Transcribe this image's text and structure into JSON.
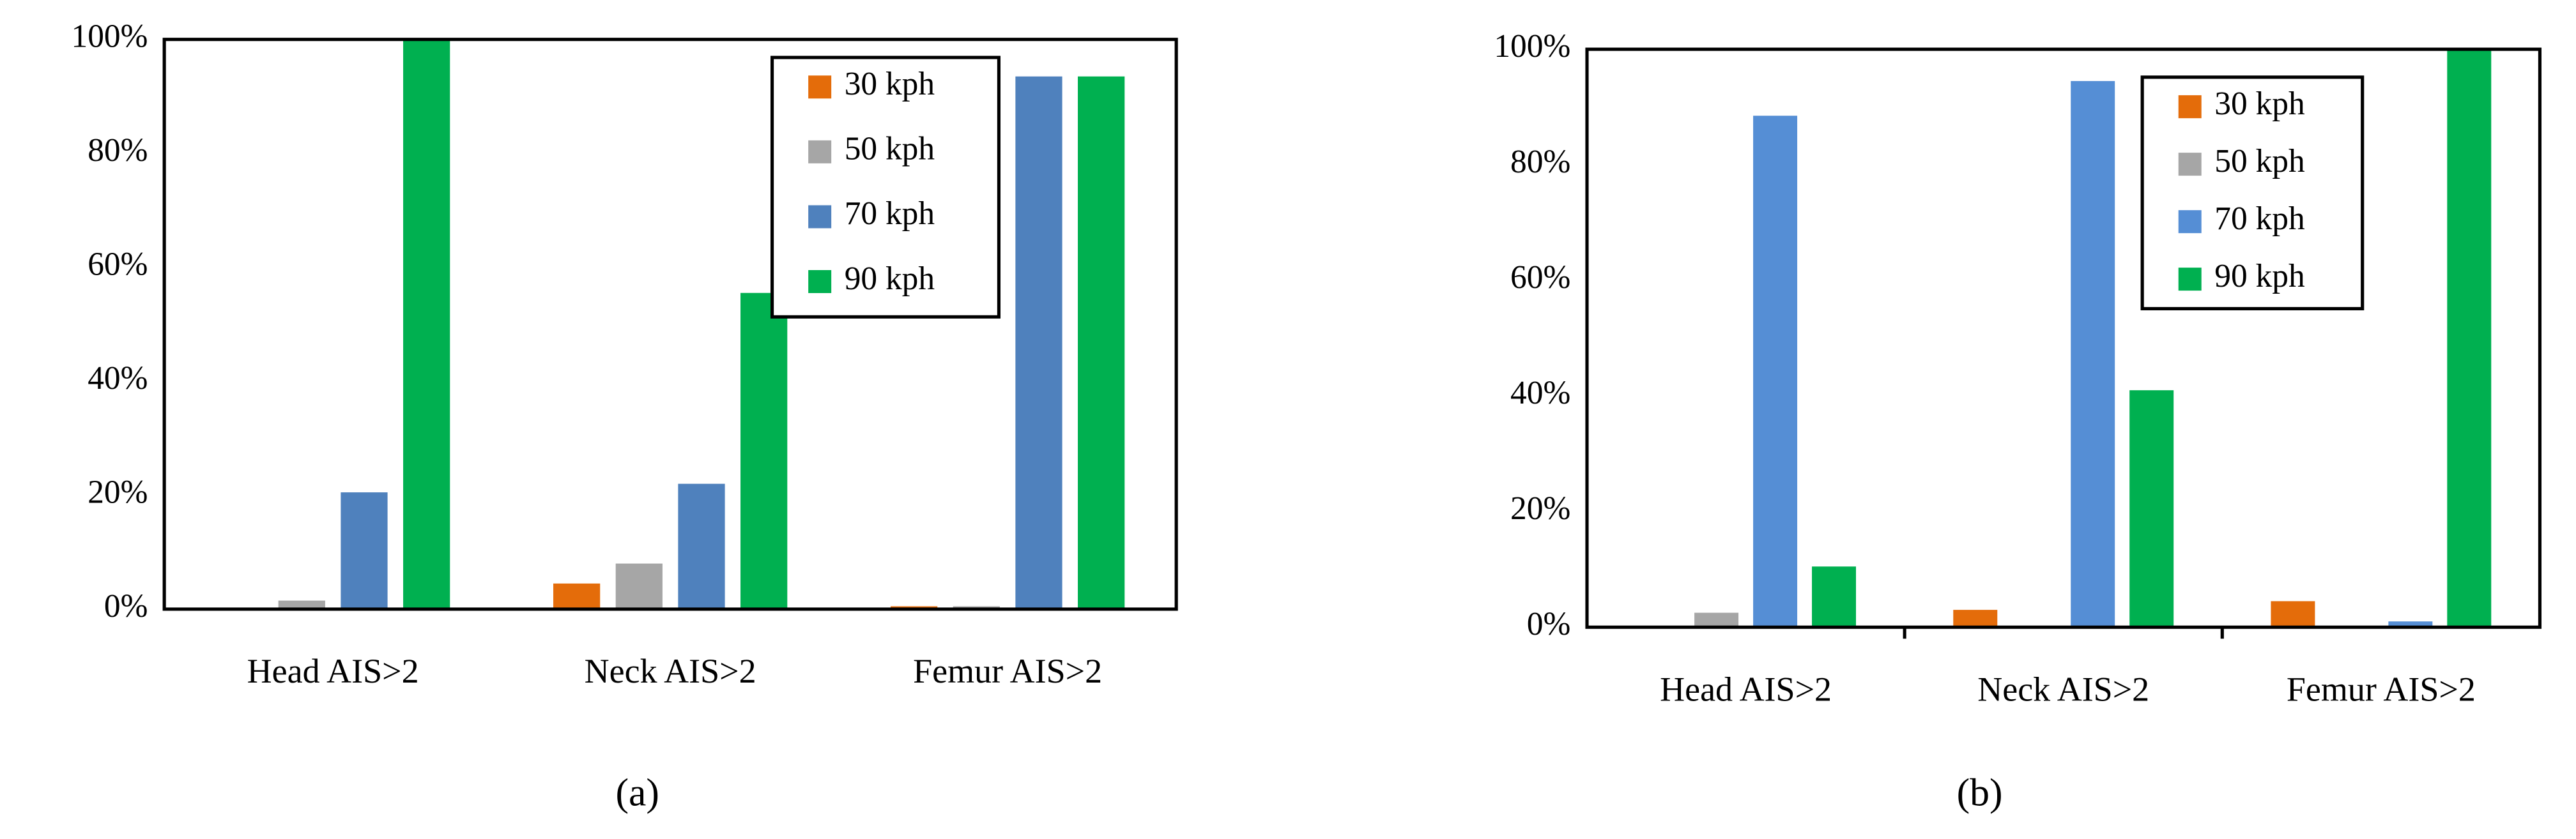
{
  "chart_data": [
    {
      "type": "bar",
      "caption": "(a)",
      "categories": [
        "Head AIS>2",
        "Neck AIS>2",
        "Femur AIS>2"
      ],
      "series": [
        {
          "name": "30 kph",
          "color": "#e46c0a",
          "values": [
            0,
            4.5,
            0.5
          ]
        },
        {
          "name": "50 kph",
          "color": "#a6a6a6",
          "values": [
            1.5,
            8,
            0.5
          ]
        },
        {
          "name": "70 kph",
          "color": "#4f81bd",
          "values": [
            20.5,
            22,
            93.5
          ]
        },
        {
          "name": "90 kph",
          "color": "#00b050",
          "values": [
            100,
            55.5,
            93.5
          ]
        }
      ],
      "ylim": [
        0,
        100
      ],
      "yticks": [
        {
          "value": 0,
          "label": "0%"
        },
        {
          "value": 20,
          "label": "20%"
        },
        {
          "value": 40,
          "label": "40%"
        },
        {
          "value": 60,
          "label": "60%"
        },
        {
          "value": 80,
          "label": "80%"
        },
        {
          "value": 100,
          "label": "100%"
        }
      ],
      "legend": "upper right",
      "grid": false
    },
    {
      "type": "bar",
      "caption": "(b)",
      "categories": [
        "Head AIS>2",
        "Neck AIS>2",
        "Femur AIS>2"
      ],
      "series": [
        {
          "name": "30 kph",
          "color": "#e46c0a",
          "values": [
            0,
            3,
            4.5
          ]
        },
        {
          "name": "50 kph",
          "color": "#a6a6a6",
          "values": [
            2.5,
            0,
            0
          ]
        },
        {
          "name": "70 kph",
          "color": "#558ed5",
          "values": [
            88.5,
            94.5,
            1
          ]
        },
        {
          "name": "90 kph",
          "color": "#00b050",
          "values": [
            10.5,
            41,
            100
          ]
        }
      ],
      "ylim": [
        0,
        100
      ],
      "yticks": [
        {
          "value": 0,
          "label": "0%"
        },
        {
          "value": 20,
          "label": "20%"
        },
        {
          "value": 40,
          "label": "40%"
        },
        {
          "value": 60,
          "label": "60%"
        },
        {
          "value": 80,
          "label": "80%"
        },
        {
          "value": 100,
          "label": "100%"
        }
      ],
      "legend": "upper right",
      "grid": false
    }
  ]
}
